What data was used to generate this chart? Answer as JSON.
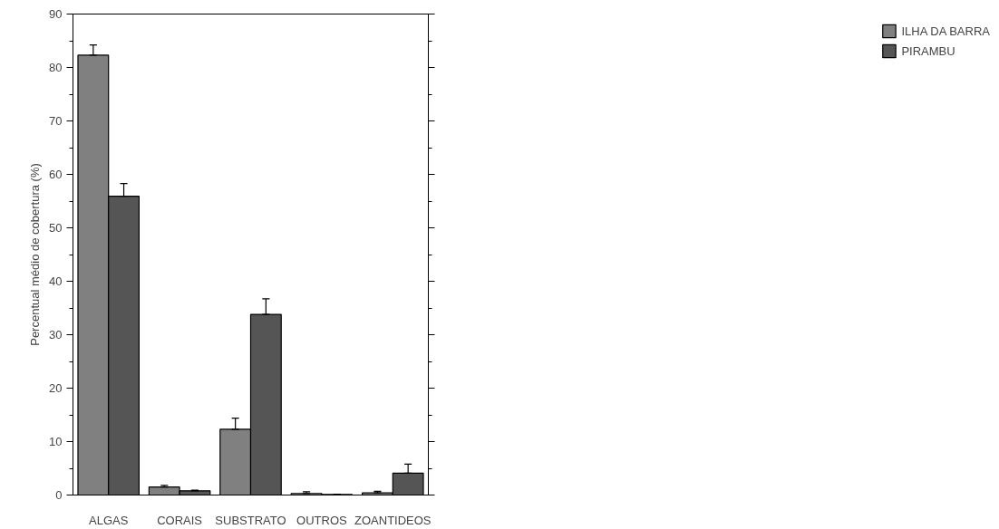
{
  "chart_data": {
    "type": "bar",
    "ylabel": "Percentual médio de cobertura (%)",
    "categories": [
      "ALGAS",
      "CORAIS",
      "SUBSTRATO",
      "OUTROS",
      "ZOANTIDEOS"
    ],
    "series": [
      {
        "name": "ILHA DA BARRA",
        "color": "#808080",
        "values": [
          82.3,
          1.5,
          12.3,
          0.3,
          0.4
        ],
        "errors": [
          [
            82.3,
            84.2
          ],
          [
            1.5,
            1.8
          ],
          [
            12.3,
            14.4
          ],
          [
            0.3,
            0.6
          ],
          [
            0.4,
            0.7
          ]
        ]
      },
      {
        "name": "PIRAMBU",
        "color": "#555555",
        "values": [
          55.9,
          0.8,
          33.8,
          0.1,
          4.1
        ],
        "errors": [
          [
            55.9,
            58.3
          ],
          [
            0.8,
            0.9
          ],
          [
            33.8,
            36.7
          ],
          [
            0.1,
            0.1
          ],
          [
            4.1,
            5.8
          ]
        ]
      }
    ],
    "ylim": [
      0,
      90
    ],
    "yticks": [
      0,
      10,
      20,
      30,
      40,
      50,
      60,
      70,
      80,
      90
    ],
    "grid": false,
    "legend": "right"
  }
}
